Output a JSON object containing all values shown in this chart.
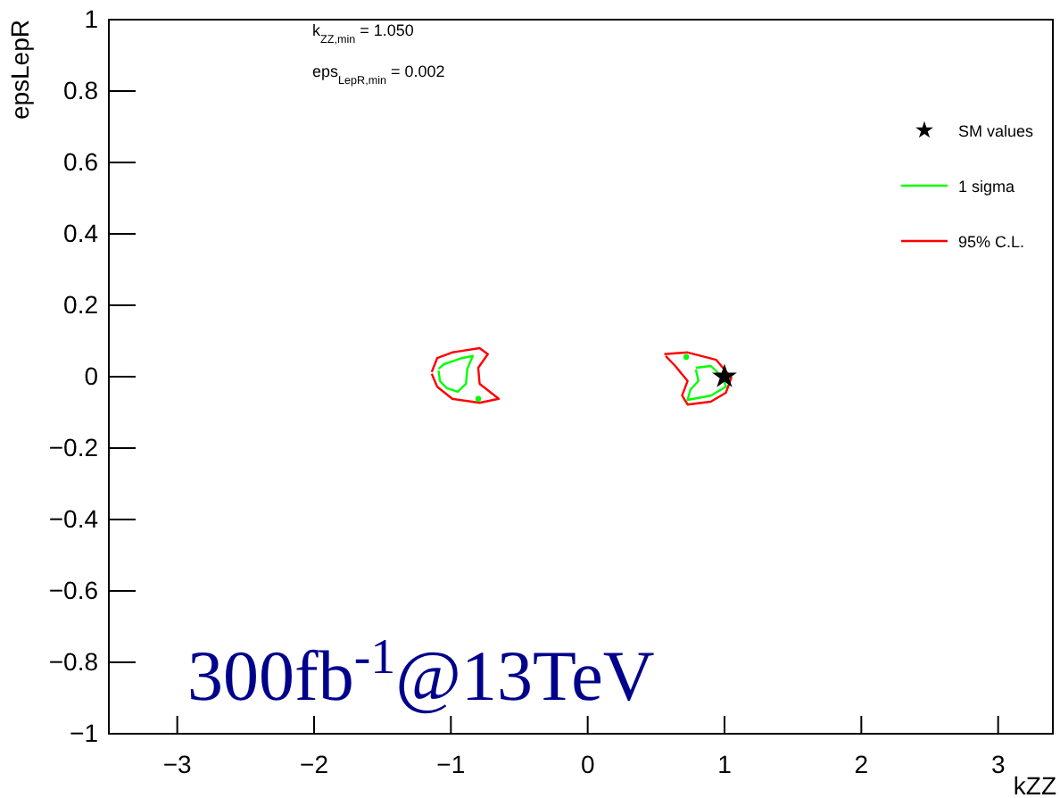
{
  "chart_data": {
    "type": "line",
    "xlabel": "kZZ",
    "ylabel": "epsLepR",
    "xlim": [
      -3.5,
      3.4
    ],
    "ylim": [
      -1,
      1
    ],
    "xticks": [
      -3,
      -2,
      -1,
      0,
      1,
      2,
      3
    ],
    "yticks": [
      -1,
      -0.8,
      -0.6,
      -0.4,
      -0.2,
      0,
      0.2,
      0.4,
      0.6,
      0.8,
      1
    ],
    "grid": false,
    "legend": "top right",
    "line_style": "solid",
    "series": [
      {
        "type": "scatter",
        "name": "SM values",
        "color": "#000000",
        "marker": "star",
        "x": [
          1
        ],
        "values": [
          0
        ]
      },
      {
        "name": "1 sigma",
        "color": "#00ff00",
        "x": [
          -1.09,
          -1.05,
          -0.92,
          -0.84,
          -0.88,
          -0.89,
          -0.95,
          -1.03,
          -1.08,
          -1.09
        ],
        "values": [
          0.022,
          0.035,
          0.052,
          0.058,
          0.022,
          -0.02,
          -0.042,
          -0.032,
          -0.012,
          0.017
        ]
      },
      {
        "color": "#00ff00",
        "x": [
          0.79,
          0.9,
          0.99,
          1.01,
          0.9,
          0.73,
          0.75,
          0.81,
          0.79
        ],
        "values": [
          0.025,
          0.03,
          -0.003,
          -0.028,
          -0.053,
          -0.065,
          -0.037,
          -0.012,
          0.02
        ]
      },
      {
        "type": "scatter",
        "color": "#00ff00",
        "marker": "circle",
        "x": [
          -0.8,
          0.72
        ],
        "values": [
          -0.062,
          0.055
        ]
      },
      {
        "name": "95% C.L.",
        "color": "#ff0000",
        "x": [
          -1.14,
          -1.1,
          -0.99,
          -0.79,
          -0.73,
          -0.8,
          -0.79,
          -0.65,
          -0.79,
          -0.99,
          -1.1,
          -1.14
        ],
        "values": [
          0.013,
          0.052,
          0.068,
          0.08,
          0.063,
          0.025,
          -0.02,
          -0.062,
          -0.073,
          -0.062,
          -0.028,
          0.008
        ]
      },
      {
        "color": "#ff0000",
        "x": [
          0.56,
          0.73,
          0.94,
          1.05,
          1.01,
          0.9,
          0.73,
          0.69,
          0.73,
          0.64,
          0.57
        ],
        "values": [
          0.063,
          0.068,
          0.047,
          -0.003,
          -0.045,
          -0.07,
          -0.078,
          -0.053,
          -0.012,
          0.03,
          0.058
        ]
      }
    ],
    "annotations": [
      "k$_{ZZ,min}$ = 1.050",
      "eps$_{LepR,min}$ = 0.002",
      "300fb$^{-1}$@13TeV"
    ]
  }
}
